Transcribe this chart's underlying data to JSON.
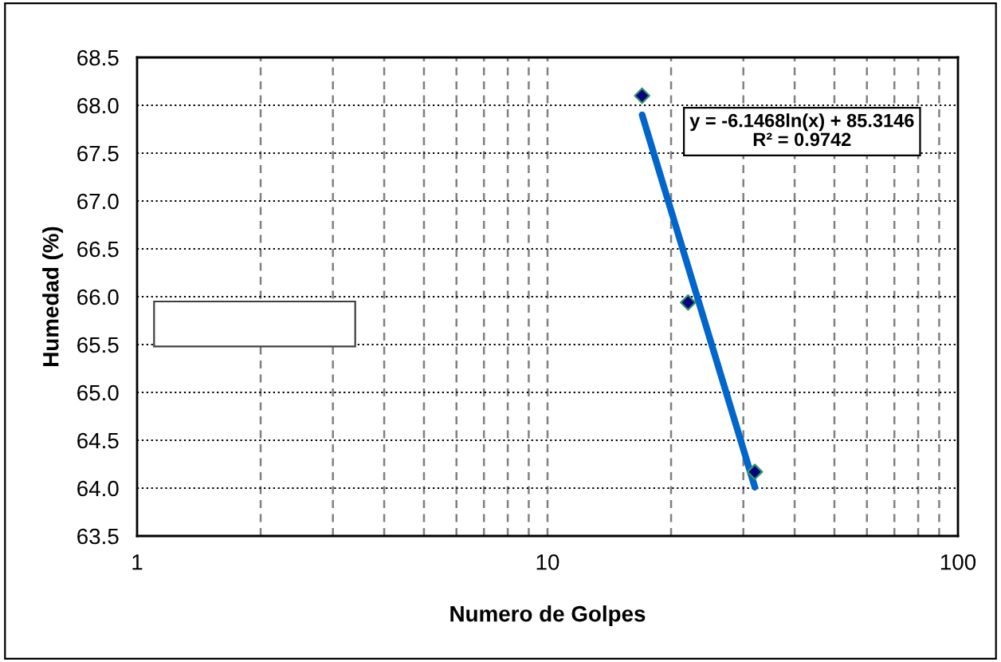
{
  "chart_data": {
    "type": "scatter",
    "xlabel": "Numero de Golpes",
    "ylabel": "Humedad (%)",
    "log": "x",
    "xlim": [
      1,
      100
    ],
    "xticks": [
      1,
      10,
      100
    ],
    "ylim": [
      63.5,
      68.5
    ],
    "yticks": [
      {
        "value": 63.5,
        "label": "63.5"
      },
      {
        "value": 64.0,
        "label": "64.0"
      },
      {
        "value": 64.5,
        "label": "64.5"
      },
      {
        "value": 65.0,
        "label": "65.0"
      },
      {
        "value": 65.5,
        "label": "65.5"
      },
      {
        "value": 66.0,
        "label": "66.0"
      },
      {
        "value": 66.5,
        "label": "66.5"
      },
      {
        "value": 67.0,
        "label": "67.0"
      },
      {
        "value": 67.5,
        "label": "67.5"
      },
      {
        "value": 68.0,
        "label": "68.0"
      },
      {
        "value": 68.5,
        "label": "68.5"
      }
    ],
    "grid": true,
    "legend": false,
    "marker": "diamond",
    "series": [
      {
        "color": "#000080",
        "x": [
          17,
          22,
          32
        ],
        "values": [
          68.1,
          65.94,
          64.17
        ]
      },
      {
        "type": "line",
        "color": "#0066cc",
        "x": [
          17,
          32
        ],
        "values": [
          67.9,
          64.01
        ],
        "marker": "none"
      }
    ],
    "annotations": [
      "y = -6.1468ln(x) + 85.3146\nR² = 0.9742"
    ]
  }
}
